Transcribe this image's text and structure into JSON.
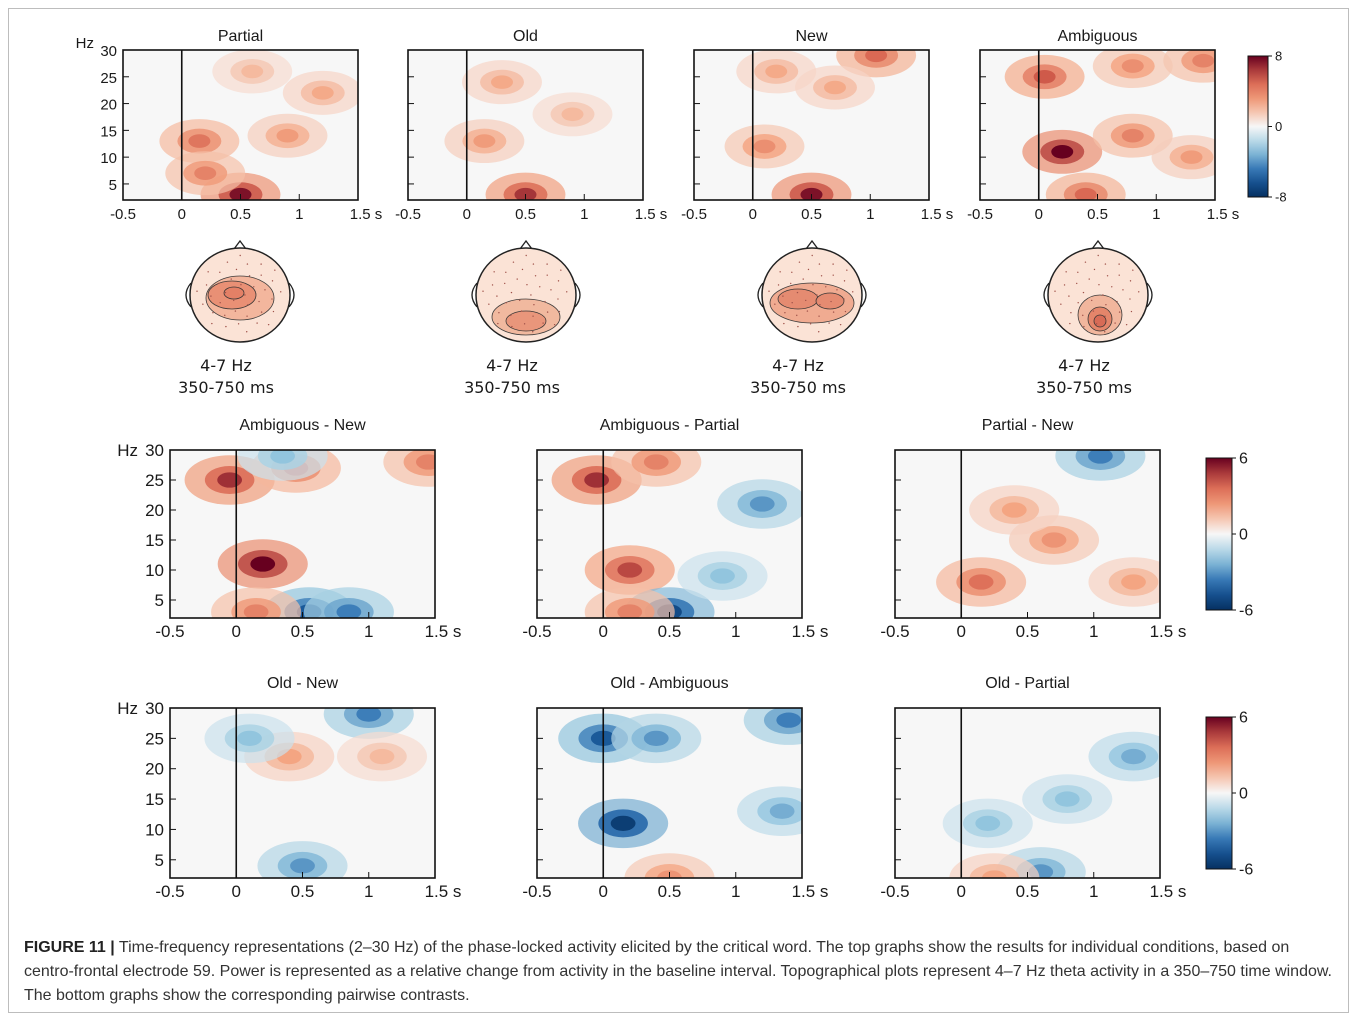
{
  "chart_data": [
    {
      "type": "heatmap",
      "title": "Partial",
      "ylabel": "Hz",
      "yticks": [
        "5",
        "10",
        "15",
        "20",
        "25",
        "30"
      ],
      "xticks": [
        "-0.5",
        "0",
        "0.5",
        "1",
        "1.5 s"
      ],
      "xlim": [
        -0.5,
        1.5
      ],
      "ylim": [
        2,
        30
      ],
      "clim": [
        -8,
        8
      ],
      "hotspots": [
        {
          "t": 0.5,
          "f": 3,
          "value": 7.5
        },
        {
          "t": 0.15,
          "f": 13,
          "value": 4.5
        },
        {
          "t": 0.2,
          "f": 7,
          "value": 4
        },
        {
          "t": 0.9,
          "f": 14,
          "value": 3
        },
        {
          "t": 1.2,
          "f": 22,
          "value": 2.5
        },
        {
          "t": 0.6,
          "f": 26,
          "value": 2
        }
      ]
    },
    {
      "type": "heatmap",
      "title": "Old",
      "xticks": [
        "-0.5",
        "0",
        "0.5",
        "1",
        "1.5 s"
      ],
      "xlim": [
        -0.5,
        1.5
      ],
      "ylim": [
        2,
        30
      ],
      "clim": [
        -8,
        8
      ],
      "hotspots": [
        {
          "t": 0.5,
          "f": 3,
          "value": 6.5
        },
        {
          "t": 0.15,
          "f": 13,
          "value": 3
        },
        {
          "t": 0.3,
          "f": 24,
          "value": 2.5
        },
        {
          "t": 0.9,
          "f": 18,
          "value": 2
        }
      ]
    },
    {
      "type": "heatmap",
      "title": "New",
      "xticks": [
        "-0.5",
        "0",
        "0.5",
        "1",
        "1.5 s"
      ],
      "xlim": [
        -0.5,
        1.5
      ],
      "ylim": [
        2,
        30
      ],
      "clim": [
        -8,
        8
      ],
      "hotspots": [
        {
          "t": 0.5,
          "f": 3,
          "value": 7.5
        },
        {
          "t": 1.05,
          "f": 29,
          "value": 5
        },
        {
          "t": 0.1,
          "f": 12,
          "value": 3.5
        },
        {
          "t": 0.7,
          "f": 23,
          "value": 2.5
        },
        {
          "t": 0.2,
          "f": 26,
          "value": 2.5
        }
      ]
    },
    {
      "type": "heatmap",
      "title": "Ambiguous",
      "xticks": [
        "-0.5",
        "0",
        "0.5",
        "1",
        "1.5 s"
      ],
      "xlim": [
        -0.5,
        1.5
      ],
      "ylim": [
        2,
        30
      ],
      "clim": [
        -8,
        8
      ],
      "hotspots": [
        {
          "t": 0.2,
          "f": 11,
          "value": 8
        },
        {
          "t": 0.05,
          "f": 25,
          "value": 5.5
        },
        {
          "t": 0.4,
          "f": 3,
          "value": 5
        },
        {
          "t": 0.8,
          "f": 14,
          "value": 4
        },
        {
          "t": 1.4,
          "f": 28,
          "value": 4
        },
        {
          "t": 0.8,
          "f": 27,
          "value": 3.5
        },
        {
          "t": 1.3,
          "f": 10,
          "value": 3
        }
      ]
    },
    {
      "type": "heatmap",
      "title": "Ambiguous - New",
      "ylabel": "Hz",
      "yticks": [
        "5",
        "10",
        "15",
        "20",
        "25",
        "30"
      ],
      "xticks": [
        "-0.5",
        "0",
        "0.5",
        "1",
        "1.5 s"
      ],
      "xlim": [
        -0.5,
        1.5
      ],
      "ylim": [
        2,
        30
      ],
      "clim": [
        -6,
        6
      ],
      "hotspots": [
        {
          "t": 0.2,
          "f": 11,
          "value": 6
        },
        {
          "t": -0.05,
          "f": 25,
          "value": 5
        },
        {
          "t": 0.45,
          "f": 27,
          "value": 3.5
        },
        {
          "t": 1.45,
          "f": 28,
          "value": 3
        },
        {
          "t": 0.55,
          "f": 3,
          "value": -4.5
        },
        {
          "t": 0.85,
          "f": 3,
          "value": -3.5
        },
        {
          "t": 0.15,
          "f": 3,
          "value": 3
        },
        {
          "t": 0.35,
          "f": 29,
          "value": -2
        }
      ]
    },
    {
      "type": "heatmap",
      "title": "Ambiguous - Partial",
      "xticks": [
        "-0.5",
        "0",
        "0.5",
        "1",
        "1.5 s"
      ],
      "xlim": [
        -0.5,
        1.5
      ],
      "ylim": [
        2,
        30
      ],
      "clim": [
        -6,
        6
      ],
      "hotspots": [
        {
          "t": -0.05,
          "f": 25,
          "value": 5
        },
        {
          "t": 0.2,
          "f": 10,
          "value": 4.5
        },
        {
          "t": 0.4,
          "f": 28,
          "value": 3
        },
        {
          "t": 0.5,
          "f": 3,
          "value": -5
        },
        {
          "t": 0.2,
          "f": 3,
          "value": 3
        },
        {
          "t": 1.2,
          "f": 21,
          "value": -3
        },
        {
          "t": 0.9,
          "f": 9,
          "value": -2
        }
      ]
    },
    {
      "type": "heatmap",
      "title": "Partial - New",
      "xticks": [
        "-0.5",
        "0",
        "0.5",
        "1",
        "1.5 s"
      ],
      "xlim": [
        -0.5,
        1.5
      ],
      "ylim": [
        2,
        30
      ],
      "clim": [
        -6,
        6
      ],
      "hotspots": [
        {
          "t": 0.15,
          "f": 8,
          "value": 3.5
        },
        {
          "t": 0.7,
          "f": 15,
          "value": 2.5
        },
        {
          "t": 1.05,
          "f": 29,
          "value": -3.5
        },
        {
          "t": 0.4,
          "f": 20,
          "value": 2
        },
        {
          "t": 1.3,
          "f": 8,
          "value": 2
        }
      ]
    },
    {
      "type": "heatmap",
      "title": "Old - New",
      "ylabel": "Hz",
      "yticks": [
        "5",
        "10",
        "15",
        "20",
        "25",
        "30"
      ],
      "xticks": [
        "-0.5",
        "0",
        "0.5",
        "1",
        "1.5 s"
      ],
      "xlim": [
        -0.5,
        1.5
      ],
      "ylim": [
        2,
        30
      ],
      "clim": [
        -6,
        6
      ],
      "hotspots": [
        {
          "t": 1.0,
          "f": 29,
          "value": -3.5
        },
        {
          "t": 0.5,
          "f": 4,
          "value": -3
        },
        {
          "t": 0.4,
          "f": 22,
          "value": 2
        },
        {
          "t": 0.1,
          "f": 25,
          "value": -2
        },
        {
          "t": 1.1,
          "f": 22,
          "value": 1.5
        }
      ]
    },
    {
      "type": "heatmap",
      "title": "Old - Ambiguous",
      "xticks": [
        "-0.5",
        "0",
        "0.5",
        "1",
        "1.5 s"
      ],
      "xlim": [
        -0.5,
        1.5
      ],
      "ylim": [
        2,
        30
      ],
      "clim": [
        -6,
        6
      ],
      "hotspots": [
        {
          "t": 0.15,
          "f": 11,
          "value": -5.5
        },
        {
          "t": 0.0,
          "f": 25,
          "value": -4.5
        },
        {
          "t": 1.4,
          "f": 28,
          "value": -3.5
        },
        {
          "t": 0.4,
          "f": 25,
          "value": -3
        },
        {
          "t": 0.5,
          "f": 2,
          "value": 2.5
        },
        {
          "t": 1.35,
          "f": 13,
          "value": -2.5
        }
      ]
    },
    {
      "type": "heatmap",
      "title": "Old - Partial",
      "xticks": [
        "-0.5",
        "0",
        "0.5",
        "1",
        "1.5 s"
      ],
      "xlim": [
        -0.5,
        1.5
      ],
      "ylim": [
        2,
        30
      ],
      "clim": [
        -6,
        6
      ],
      "hotspots": [
        {
          "t": 0.6,
          "f": 3,
          "value": -3
        },
        {
          "t": 1.3,
          "f": 22,
          "value": -2.5
        },
        {
          "t": 0.2,
          "f": 11,
          "value": -2
        },
        {
          "t": 0.8,
          "f": 15,
          "value": -2
        },
        {
          "t": 0.25,
          "f": 2,
          "value": 2
        }
      ]
    }
  ],
  "topoplots": [
    {
      "freq": "4-7 Hz",
      "time": "350-750 ms"
    },
    {
      "freq": "4-7 Hz",
      "time": "350-750 ms"
    },
    {
      "freq": "4-7 Hz",
      "time": "350-750 ms"
    },
    {
      "freq": "4-7 Hz",
      "time": "350-750 ms"
    }
  ],
  "colorbars": [
    {
      "max": "8",
      "mid": "0",
      "min": "-8"
    },
    {
      "max": "6",
      "mid": "0",
      "min": "-6"
    },
    {
      "max": "6",
      "mid": "0",
      "min": "-6"
    }
  ],
  "colors": {
    "neg": "#053061",
    "mid": "#f7f7f7",
    "pos": "#67001f"
  },
  "caption": {
    "label": "FIGURE 11 |",
    "text": " Time-frequency representations (2–30 Hz) of the phase-locked activity elicited by the critical word. The top graphs show the results for individual conditions, based on centro-frontal electrode 59. Power is represented as a relative change from activity in the baseline interval. Topographical plots represent 4–7 Hz theta activity in a 350–750 time window. The bottom graphs show the corresponding pairwise contrasts."
  }
}
